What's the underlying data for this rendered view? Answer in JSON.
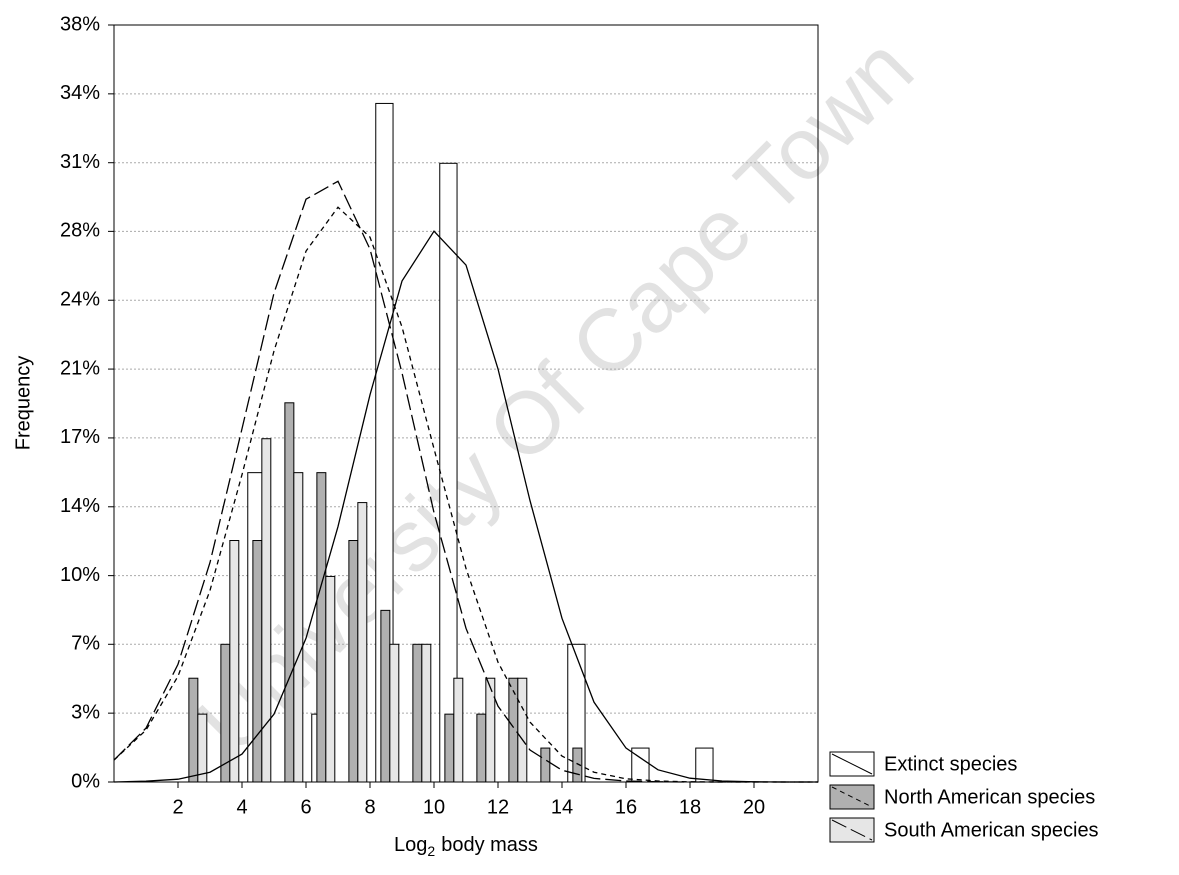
{
  "chart_data": {
    "type": "histogram",
    "ylabel": "Frequency",
    "xlabel": {
      "base": "Log",
      "subscript": "2",
      "rest": "body mass"
    },
    "watermark": "University Of Cape Town",
    "xlim": [
      0,
      22
    ],
    "xticks": [
      2,
      4,
      6,
      8,
      10,
      12,
      14,
      16,
      18,
      20
    ],
    "ylim": [
      0,
      37.93
    ],
    "yticks": [
      {
        "value": 0,
        "label": "0%"
      },
      {
        "value": 3.45,
        "label": "3%"
      },
      {
        "value": 6.9,
        "label": "7%"
      },
      {
        "value": 10.34,
        "label": "10%"
      },
      {
        "value": 13.79,
        "label": "14%"
      },
      {
        "value": 17.24,
        "label": "17%"
      },
      {
        "value": 20.69,
        "label": "21%"
      },
      {
        "value": 24.14,
        "label": "24%"
      },
      {
        "value": 27.59,
        "label": "28%"
      },
      {
        "value": 31.03,
        "label": "31%"
      },
      {
        "value": 34.48,
        "label": "34%"
      },
      {
        "value": 37.93,
        "label": "38%"
      }
    ],
    "grid": true,
    "bins": [
      2,
      3,
      4,
      5,
      6,
      7,
      8,
      9,
      10,
      11,
      12,
      13,
      14,
      15,
      16,
      17,
      18,
      19
    ],
    "fit_x": [
      0,
      1,
      2,
      3,
      4,
      5,
      6,
      7,
      8,
      9,
      10,
      11,
      12,
      13,
      14,
      15,
      16,
      17,
      18,
      19,
      20,
      21,
      22
    ],
    "series": [
      {
        "name": "Extinct species",
        "color": "#ffffff",
        "dash": "none",
        "values": [
          0,
          0,
          15.5,
          0,
          3.4,
          0,
          34,
          0,
          31,
          0,
          0,
          0,
          6.9,
          0,
          1.7,
          0,
          1.7
        ],
        "fit": [
          0,
          0.04,
          0.14,
          0.49,
          1.4,
          3.4,
          7.2,
          12.8,
          19.4,
          25.1,
          27.6,
          25.9,
          20.7,
          14.1,
          8.2,
          4.0,
          1.7,
          0.61,
          0.19,
          0.05,
          0.01,
          0,
          0
        ]
      },
      {
        "name": "North American species",
        "color": "#b0b0b0",
        "dash": "5,4",
        "values": [
          5.2,
          6.9,
          12.1,
          19,
          15.5,
          12.1,
          8.6,
          6.9,
          3.4,
          3.4,
          5.2,
          1.7,
          1.7,
          0,
          0,
          0,
          0
        ],
        "fit": [
          1.1,
          2.6,
          5.3,
          9.6,
          15.4,
          21.6,
          26.6,
          28.8,
          27.3,
          22.8,
          16.7,
          10.7,
          6.0,
          3.0,
          1.3,
          0.49,
          0.16,
          0.05,
          0.01,
          0,
          0,
          0,
          0
        ]
      },
      {
        "name": "South American species",
        "color": "#e6e6e6",
        "dash": "16,5",
        "values": [
          3.4,
          12.1,
          17.2,
          15.5,
          10.3,
          14,
          6.9,
          6.9,
          5.2,
          5.2,
          5.2,
          0,
          0,
          0,
          0,
          0,
          0
        ],
        "fit": [
          1.1,
          2.7,
          5.9,
          11.0,
          17.7,
          24.5,
          29.2,
          30.1,
          26.7,
          20.5,
          13.5,
          7.7,
          3.8,
          1.6,
          0.59,
          0.18,
          0.05,
          0.01,
          0,
          0,
          0,
          0,
          0
        ]
      }
    ]
  }
}
